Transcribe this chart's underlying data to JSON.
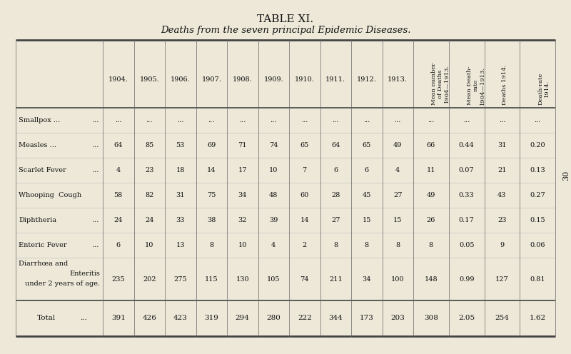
{
  "title": "TABLE XI.",
  "subtitle": "Deaths from the seven principal Epidemic Diseases.",
  "bg_color": "#ede8d8",
  "col_headers_upright": [
    "1904.",
    "1905.",
    "1906.",
    "1907.",
    "1908.",
    "1909.",
    "1910.",
    "1911.",
    "1912.",
    "1913."
  ],
  "col_headers_rotated": [
    "Mean number\nof Deaths\n1904—1913.",
    "Mean Death-\nrate\n1904—1913.",
    "Deaths 1914.",
    "Death-rate\n1914."
  ],
  "row_labels": [
    [
      "Smallpox ...",
      "..."
    ],
    [
      "Measles ...",
      "..."
    ],
    [
      "Scarlet Fever",
      "..."
    ],
    [
      "Whooping  Cough",
      ""
    ],
    [
      "Diphtheria",
      "..."
    ],
    [
      "Enteric Fever",
      "..."
    ],
    [
      "Diarrhœa and",
      "Enteritis",
      "under 2 years of age."
    ],
    [
      "Total",
      "..."
    ]
  ],
  "data": [
    [
      "...",
      "...",
      "...",
      "...",
      "...",
      "...",
      "...",
      "...",
      "...",
      "...",
      "...",
      "...",
      "...",
      "..."
    ],
    [
      "64",
      "85",
      "53",
      "69",
      "71",
      "74",
      "65",
      "64",
      "65",
      "49",
      "66",
      "0.44",
      "31",
      "0.20"
    ],
    [
      "4",
      "23",
      "18",
      "14",
      "17",
      "10",
      "7",
      "6",
      "6",
      "4",
      "11",
      "0.07",
      "21",
      "0.13"
    ],
    [
      "58",
      "82",
      "31",
      "75",
      "34",
      "48",
      "60",
      "28",
      "45",
      "27",
      "49",
      "0.33",
      "43",
      "0.27"
    ],
    [
      "24",
      "24",
      "33",
      "38",
      "32",
      "39",
      "14",
      "27",
      "15",
      "15",
      "26",
      "0.17",
      "23",
      "0.15"
    ],
    [
      "6",
      "10",
      "13",
      "8",
      "10",
      "4",
      "2",
      "8",
      "8",
      "8",
      "8",
      "0.05",
      "9",
      "0.06"
    ],
    [
      "235",
      "202",
      "275",
      "115",
      "130",
      "105",
      "74",
      "211",
      "34",
      "100",
      "148",
      "0.99",
      "127",
      "0.81"
    ],
    [
      "391",
      "426",
      "423",
      "319",
      "294",
      "280",
      "222",
      "344",
      "173",
      "203",
      "308",
      "2.05",
      "254",
      "1.62"
    ]
  ],
  "page_number": "30"
}
